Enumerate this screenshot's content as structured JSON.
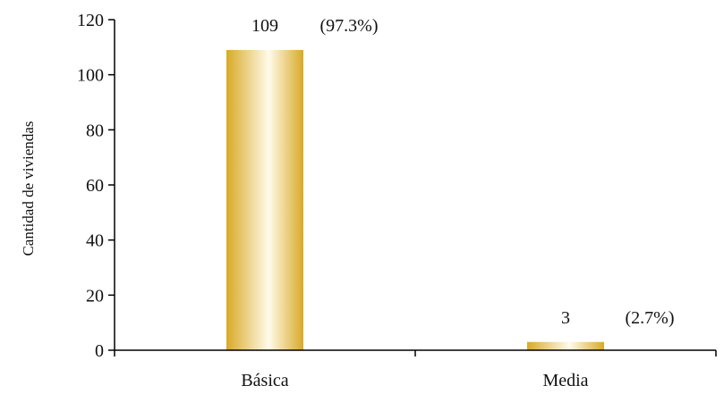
{
  "chart_data": {
    "type": "bar",
    "categories": [
      "Básica",
      "Media"
    ],
    "values": [
      109,
      3
    ],
    "data_labels": [
      "109",
      "3"
    ],
    "percent_labels": [
      "(97.3%)",
      "(2.7%)"
    ],
    "title": "",
    "xlabel": "",
    "ylabel": "Cantidad de viviendas",
    "ylim": [
      0,
      120
    ],
    "yticks": [
      0,
      20,
      40,
      60,
      80,
      100,
      120
    ],
    "grid": false,
    "legend": "none",
    "bar_gradient": [
      "#d9a928",
      "#fffbea",
      "#d9a928"
    ]
  }
}
